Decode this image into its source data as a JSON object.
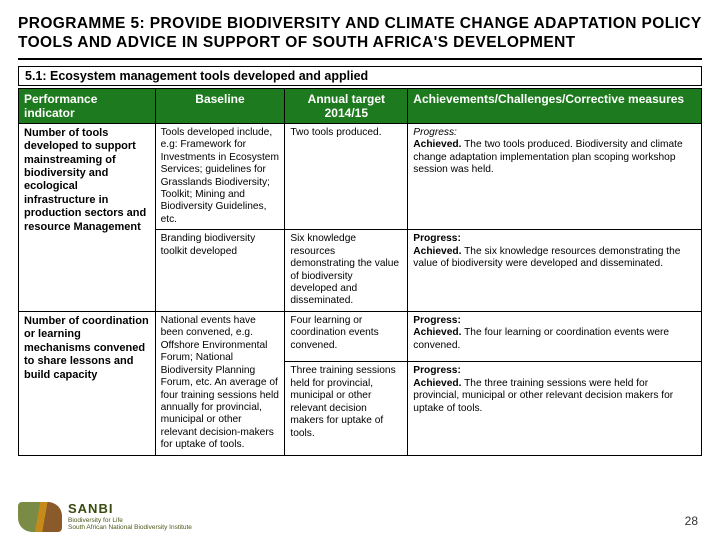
{
  "title": "PROGRAMME 5: PROVIDE BIODIVERSITY AND CLIMATE CHANGE ADAPTATION POLICY TOOLS AND ADVICE IN SUPPORT OF SOUTH AFRICA'S DEVELOPMENT",
  "subtitle": "5.1: Ecosystem management tools developed and applied",
  "columns": {
    "c1": "Performance indicator",
    "c2": "Baseline",
    "c3_line1": "Annual target",
    "c3_line2": "2014/15",
    "c4": "Achievements/Challenges/Corrective measures"
  },
  "rows": [
    {
      "indicator": "Number of tools developed to support mainstreaming of biodiversity and ecological infrastructure in production sectors and resource Management",
      "baseline": "Tools developed include, e.g: Framework for Investments in Ecosystem Services; guidelines for Grasslands Biodiversity; Toolkit; Mining and Biodiversity Guidelines, etc.",
      "target": "Two tools produced.",
      "ach_label": "Progress:",
      "ach_status": "Achieved.",
      "ach_body": " The two tools produced.  Biodiversity and climate change adaptation implementation plan scoping workshop session was held."
    },
    {
      "indicator": "",
      "baseline": "Branding biodiversity toolkit developed",
      "target": "Six knowledge resources demonstrating the value of biodiversity developed and disseminated.",
      "ach_label": "Progress:",
      "ach_status": "Achieved.",
      "ach_body": " The six knowledge resources demonstrating the value of biodiversity were developed and disseminated."
    },
    {
      "indicator": "Number of coordination or learning mechanisms convened to share lessons and build capacity",
      "baseline": "National events have been convened, e.g. Offshore Environmental Forum; National Biodiversity Planning Forum, etc. An average of four training sessions held annually for provincial, municipal or other relevant decision-makers for uptake of tools.",
      "target": "Four learning or coordination events convened.",
      "ach_label": "Progress:",
      "ach_status": "Achieved.",
      "ach_body": " The four learning or coordination events were convened."
    },
    {
      "indicator": "",
      "baseline": "",
      "target": "Three training sessions held for provincial, municipal or other relevant decision makers for uptake of tools.",
      "ach_label": "Progress:",
      "ach_status": "Achieved.",
      "ach_body": "  The three training sessions were held for provincial, municipal or other relevant decision makers for uptake of tools."
    }
  ],
  "logo": {
    "big": "SANBI",
    "line1": "Biodiversity for Life",
    "line2": "South African National Biodiversity Institute"
  },
  "page_number": "28",
  "style": {
    "header_bg": "#1e7a1e",
    "header_fg": "#ffffff",
    "border": "#000000",
    "title_fontsize": 15.5,
    "cell_fontsize": 10.2,
    "indicator_fontsize": 11
  }
}
